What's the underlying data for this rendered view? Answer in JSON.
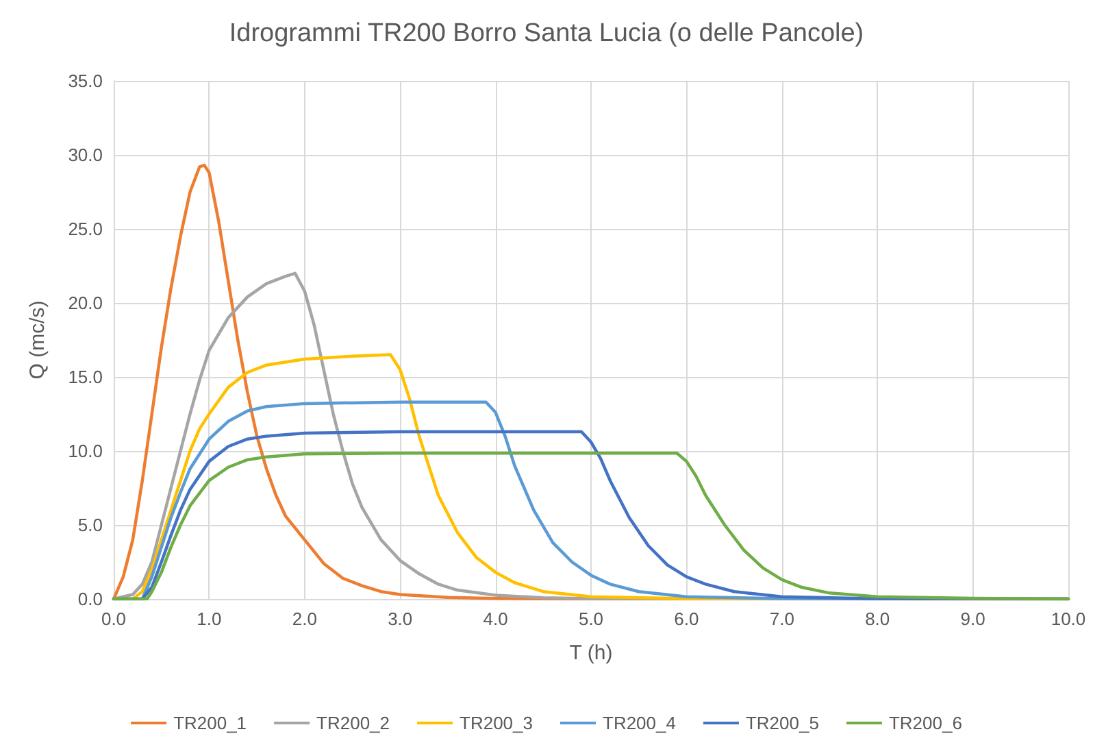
{
  "chart_data": {
    "type": "line",
    "title": "Idrogrammi TR200 Borro Santa Lucia (o delle Pancole)",
    "xlabel": "T (h)",
    "ylabel": "Q (mc/s)",
    "xlim": [
      0,
      10
    ],
    "xticks": [
      {
        "value": 0,
        "label": "0.0"
      },
      {
        "value": 1,
        "label": "1.0"
      },
      {
        "value": 2,
        "label": "2.0"
      },
      {
        "value": 3,
        "label": "3.0"
      },
      {
        "value": 4,
        "label": "4.0"
      },
      {
        "value": 5,
        "label": "5.0"
      },
      {
        "value": 6,
        "label": "6.0"
      },
      {
        "value": 7,
        "label": "7.0"
      },
      {
        "value": 8,
        "label": "8.0"
      },
      {
        "value": 9,
        "label": "9.0"
      },
      {
        "value": 10,
        "label": "10.0"
      }
    ],
    "ylim": [
      0,
      35
    ],
    "yticks": [
      {
        "value": 0,
        "label": "0.0"
      },
      {
        "value": 5,
        "label": "5.0"
      },
      {
        "value": 10,
        "label": "10.0"
      },
      {
        "value": 15,
        "label": "15.0"
      },
      {
        "value": 20,
        "label": "20.0"
      },
      {
        "value": 25,
        "label": "25.0"
      },
      {
        "value": 30,
        "label": "30.0"
      },
      {
        "value": 35,
        "label": "35.0"
      }
    ],
    "grid": true,
    "legend": "bottom",
    "marker": "none",
    "line_style": "solid",
    "series": [
      {
        "name": "TR200_1",
        "color": "#ed7d31",
        "x": [
          0,
          0.1,
          0.2,
          0.3,
          0.4,
          0.5,
          0.6,
          0.7,
          0.8,
          0.9,
          0.95,
          1.0,
          1.1,
          1.2,
          1.3,
          1.4,
          1.5,
          1.6,
          1.7,
          1.8,
          2.0,
          2.2,
          2.4,
          2.6,
          2.8,
          3.0,
          3.5,
          4,
          5,
          10
        ],
        "values": [
          0,
          1.5,
          4,
          8,
          12.5,
          17,
          21,
          24.5,
          27.5,
          29.2,
          29.3,
          28.8,
          25.5,
          21.5,
          17.5,
          14,
          11,
          8.8,
          7,
          5.6,
          4,
          2.4,
          1.4,
          0.9,
          0.5,
          0.3,
          0.1,
          0.03,
          0,
          0
        ]
      },
      {
        "name": "TR200_2",
        "color": "#a5a5a5",
        "x": [
          0,
          0.2,
          0.3,
          0.4,
          0.5,
          0.6,
          0.7,
          0.8,
          0.9,
          1.0,
          1.2,
          1.4,
          1.6,
          1.8,
          1.9,
          2.0,
          2.1,
          2.2,
          2.3,
          2.4,
          2.5,
          2.6,
          2.8,
          3.0,
          3.2,
          3.4,
          3.6,
          4.0,
          4.5,
          5,
          10
        ],
        "values": [
          0,
          0.3,
          1,
          2.5,
          5,
          7.5,
          10,
          12.5,
          14.8,
          16.8,
          19,
          20.4,
          21.3,
          21.8,
          22,
          20.8,
          18.5,
          15.5,
          12.5,
          10,
          7.8,
          6.2,
          4,
          2.6,
          1.7,
          1,
          0.6,
          0.25,
          0.08,
          0.02,
          0
        ]
      },
      {
        "name": "TR200_3",
        "color": "#ffc000",
        "x": [
          0,
          0.2,
          0.3,
          0.4,
          0.5,
          0.6,
          0.7,
          0.8,
          0.9,
          1.0,
          1.2,
          1.4,
          1.6,
          2.0,
          2.5,
          2.9,
          3.0,
          3.1,
          3.2,
          3.3,
          3.4,
          3.6,
          3.8,
          4.0,
          4.2,
          4.5,
          5,
          6,
          10
        ],
        "values": [
          0,
          0,
          0.5,
          2,
          4,
          6,
          8,
          10,
          11.5,
          12.5,
          14.3,
          15.3,
          15.8,
          16.2,
          16.4,
          16.5,
          15.5,
          13.5,
          11,
          9,
          7,
          4.5,
          2.8,
          1.8,
          1.1,
          0.5,
          0.15,
          0.02,
          0
        ]
      },
      {
        "name": "TR200_4",
        "color": "#5b9bd5",
        "x": [
          0,
          0.3,
          0.4,
          0.5,
          0.6,
          0.7,
          0.8,
          1.0,
          1.2,
          1.4,
          1.6,
          2.0,
          3.0,
          3.9,
          4.0,
          4.1,
          4.2,
          4.4,
          4.6,
          4.8,
          5.0,
          5.2,
          5.5,
          6,
          7,
          10
        ],
        "values": [
          0,
          0,
          1.5,
          3.5,
          5.5,
          7.2,
          8.8,
          10.8,
          12,
          12.7,
          13,
          13.2,
          13.3,
          13.3,
          12.6,
          11,
          9,
          6,
          3.8,
          2.5,
          1.6,
          1,
          0.5,
          0.15,
          0.02,
          0
        ]
      },
      {
        "name": "TR200_5",
        "color": "#4472c4",
        "x": [
          0,
          0.3,
          0.4,
          0.5,
          0.6,
          0.7,
          0.8,
          1.0,
          1.2,
          1.4,
          1.6,
          2.0,
          3,
          4.9,
          5.0,
          5.1,
          5.2,
          5.4,
          5.6,
          5.8,
          6.0,
          6.2,
          6.5,
          7,
          8,
          10
        ],
        "values": [
          0,
          0,
          0.8,
          2.5,
          4.3,
          6,
          7.4,
          9.3,
          10.3,
          10.8,
          11,
          11.2,
          11.3,
          11.3,
          10.6,
          9.5,
          8,
          5.5,
          3.6,
          2.3,
          1.5,
          1,
          0.5,
          0.15,
          0.02,
          0
        ]
      },
      {
        "name": "TR200_6",
        "color": "#70ad47",
        "x": [
          0,
          0.35,
          0.4,
          0.5,
          0.6,
          0.7,
          0.8,
          1.0,
          1.2,
          1.4,
          1.6,
          2.0,
          3,
          5.9,
          6.0,
          6.1,
          6.2,
          6.4,
          6.6,
          6.8,
          7.0,
          7.2,
          7.5,
          8,
          9,
          10
        ],
        "values": [
          0,
          0,
          0.5,
          1.8,
          3.5,
          5,
          6.3,
          8,
          8.9,
          9.4,
          9.6,
          9.8,
          9.85,
          9.85,
          9.3,
          8.3,
          7,
          5,
          3.3,
          2.1,
          1.3,
          0.8,
          0.4,
          0.15,
          0.05,
          0
        ]
      }
    ]
  }
}
